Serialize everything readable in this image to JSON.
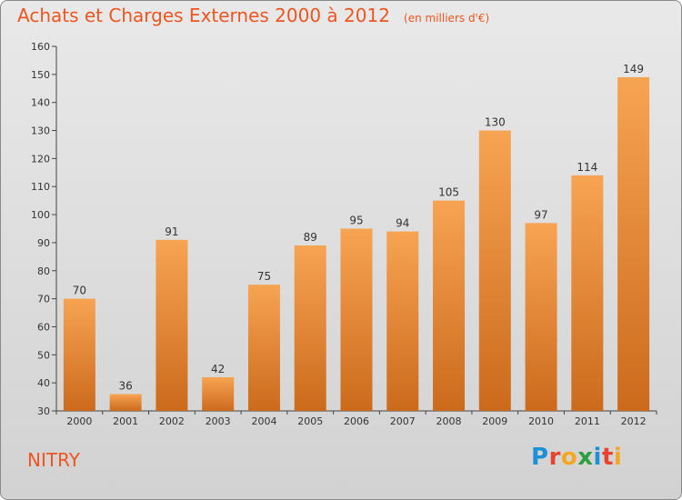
{
  "header": {
    "title": "Achats et Charges Externes 2000 à 2012",
    "unit": "(en milliers d'€)"
  },
  "footer": {
    "place": "NITRY",
    "logo": "Proxiti",
    "logo_colors": [
      "#1e90d8",
      "#e8432e",
      "#f5a623",
      "#2e9e3e",
      "#1e90d8",
      "#e8432e",
      "#f5a623"
    ]
  },
  "chart_data": {
    "type": "bar",
    "title": "Achats et Charges Externes 2000 à 2012",
    "subtitle": "(en milliers d'€)",
    "categories": [
      "2000",
      "2001",
      "2002",
      "2003",
      "2004",
      "2005",
      "2006",
      "2007",
      "2008",
      "2009",
      "2010",
      "2011",
      "2012"
    ],
    "values": [
      70,
      36,
      91,
      42,
      75,
      89,
      95,
      94,
      105,
      130,
      97,
      114,
      149
    ],
    "ylim": [
      30,
      160
    ],
    "yticks": [
      30,
      40,
      50,
      60,
      70,
      80,
      90,
      100,
      110,
      120,
      130,
      140,
      150,
      160
    ],
    "grid": false,
    "bar_color_top": "#f7a452",
    "bar_color_bottom": "#cc6a1c"
  }
}
